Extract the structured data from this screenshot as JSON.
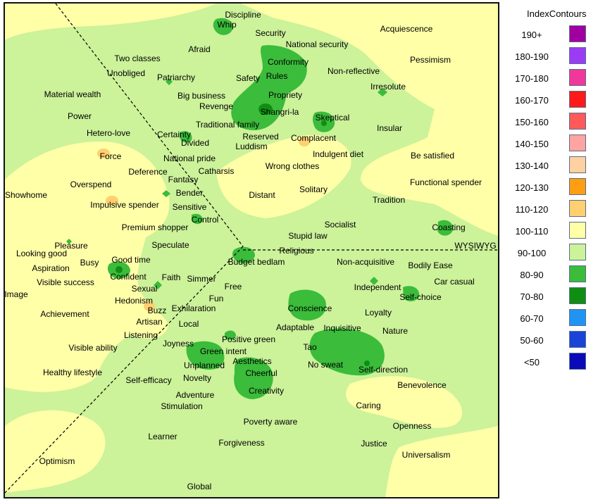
{
  "map": {
    "labels": [
      "Discipline",
      "Whip",
      "Security",
      "National security",
      "Acquiescence",
      "Afraid",
      "Two classes",
      "Conformity",
      "Pessimism",
      "Unobliged",
      "Patriarchy",
      "Safety",
      "Rules",
      "Non-reflective",
      "Irresolute",
      "Material wealth",
      "Big business",
      "Propriety",
      "Revenge",
      "Power",
      "Shangri-la",
      "Skeptical",
      "Traditional family",
      "Insular",
      "Hetero-love",
      "Certainty",
      "Reserved",
      "Complacent",
      "Divided",
      "Luddism",
      "Force",
      "Indulgent diet",
      "Be satisfied",
      "National pride",
      "Catharsis",
      "Wrong clothes",
      "Deference",
      "Fantasy",
      "Overspend",
      "Functional spender",
      "Bender",
      "Solitary",
      "Showhome",
      "Distant",
      "Tradition",
      "Impulsive spender",
      "Sensitive",
      "Control",
      "Socialist",
      "Coasting",
      "Premium shopper",
      "Stupid law",
      "Pleasure",
      "Speculate",
      "Religious",
      "WYSIWYG",
      "Looking good",
      "Good time",
      "Busy",
      "Budget bedlam",
      "Non-acquisitive",
      "Aspiration",
      "Bodily Ease",
      "Confident",
      "Faith",
      "Simmer",
      "Visible success",
      "Car casual",
      "Free",
      "Independent",
      "Sexual",
      "Image",
      "Self-choice",
      "Hedonism",
      "Fun",
      "Conscience",
      "Achievement",
      "Buzz",
      "Exhilaration",
      "Loyalty",
      "Artisan",
      "Local",
      "Adaptable",
      "Inquisitive",
      "Nature",
      "Listening",
      "Positive green",
      "Joyness",
      "Tao",
      "Visible ability",
      "Green intent",
      "Aesthetics",
      "No sweat",
      "Unplanned",
      "Self-direction",
      "Healthy lifestyle",
      "Cheerful",
      "Novelty",
      "Self-efficacy",
      "Benevolence",
      "Creativity",
      "Adventure",
      "Caring",
      "Stimulation",
      "Poverty aware",
      "Openness",
      "Learner",
      "Forgiveness",
      "Justice",
      "Universalism",
      "Optimism",
      "Global"
    ]
  },
  "legend": {
    "title": "IndexContours",
    "items": [
      {
        "label": "190+",
        "color": "#a0009f"
      },
      {
        "label": "180-190",
        "color": "#9b3cf5"
      },
      {
        "label": "170-180",
        "color": "#f0389a"
      },
      {
        "label": "160-170",
        "color": "#ff1a1a"
      },
      {
        "label": "150-160",
        "color": "#ff5a5a"
      },
      {
        "label": "140-150",
        "color": "#ffa3a3"
      },
      {
        "label": "130-140",
        "color": "#ffd0a0"
      },
      {
        "label": "120-130",
        "color": "#ff9e12"
      },
      {
        "label": "110-120",
        "color": "#ffcf70"
      },
      {
        "label": "100-110",
        "color": "#ffffa8"
      },
      {
        "label": "90-100",
        "color": "#ccf29a"
      },
      {
        "label": "80-90",
        "color": "#3bbc3b"
      },
      {
        "label": "70-80",
        "color": "#0f8e12"
      },
      {
        "label": "60-70",
        "color": "#2094f5"
      },
      {
        "label": "50-60",
        "color": "#1a44d8"
      },
      {
        "label": "<50",
        "color": "#0a0ab8"
      }
    ]
  }
}
